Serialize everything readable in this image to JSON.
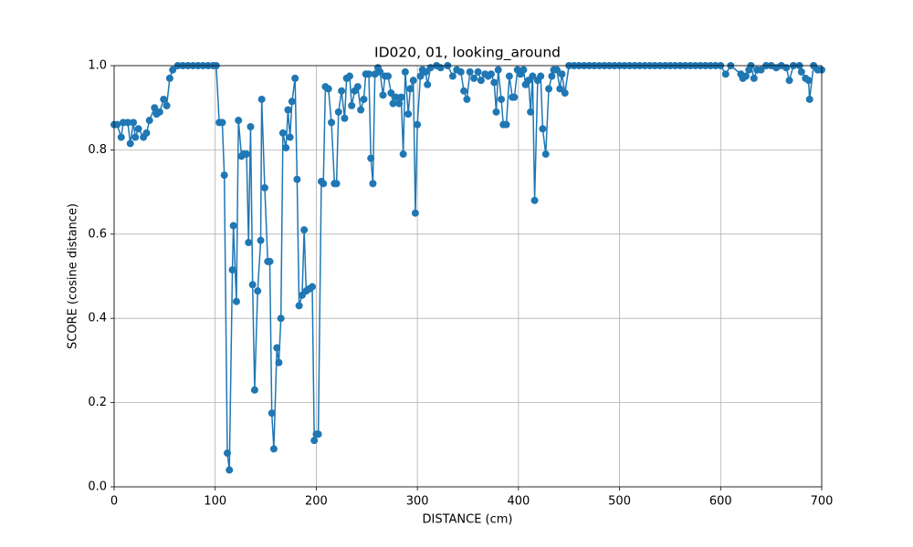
{
  "chart_data": {
    "type": "line",
    "title": "ID020, 01, looking_around",
    "xlabel": "DISTANCE (cm)",
    "ylabel": "SCORE (cosine distance)",
    "color": "#1f77b4",
    "marker": true,
    "grid": true,
    "xlim": [
      0,
      700
    ],
    "ylim": [
      0,
      1
    ],
    "xticks": [
      0,
      100,
      200,
      300,
      400,
      500,
      600,
      700
    ],
    "yticks": [
      {
        "value": 0,
        "label": "0.0"
      },
      {
        "value": 0.2,
        "label": "0.2"
      },
      {
        "value": 0.4,
        "label": "0.4"
      },
      {
        "value": 0.6,
        "label": "0.6"
      },
      {
        "value": 0.8,
        "label": "0.8"
      },
      {
        "value": 1,
        "label": "1.0"
      }
    ],
    "x": [
      0,
      3,
      7,
      9,
      13.5,
      16,
      19,
      21,
      24,
      29,
      32,
      35,
      40,
      42,
      45,
      49,
      52,
      55,
      58,
      63,
      68,
      73,
      78,
      83,
      88,
      93,
      98,
      101,
      104,
      107,
      109,
      112,
      114,
      117,
      118,
      121,
      123,
      126,
      128,
      131,
      133,
      135,
      137,
      139,
      142,
      145,
      146,
      149,
      152,
      154,
      156,
      158,
      161,
      163,
      165,
      167,
      170,
      172,
      174,
      176,
      179,
      181,
      183,
      186,
      188,
      190,
      193,
      196,
      198,
      200,
      202,
      205,
      207,
      209,
      212,
      215,
      218,
      220,
      222,
      225,
      228,
      230,
      233,
      235,
      238,
      241,
      244,
      247,
      249,
      252,
      254,
      256,
      258,
      261,
      263,
      266,
      268,
      271,
      274,
      276,
      279,
      282,
      284,
      286,
      288,
      291,
      293,
      296,
      298,
      300,
      303,
      305,
      308,
      310,
      313,
      319,
      323,
      330,
      335,
      339,
      343,
      346,
      349,
      352,
      356,
      360,
      363,
      367,
      370,
      373,
      376,
      378,
      380,
      383,
      385,
      388,
      391,
      394,
      396,
      399,
      402,
      405,
      407,
      410,
      412,
      414,
      416,
      419,
      422,
      424,
      427,
      430,
      433,
      435,
      438,
      441,
      443,
      446,
      450,
      455,
      460,
      465,
      470,
      475,
      480,
      485,
      490,
      495,
      500,
      505,
      510,
      515,
      520,
      525,
      530,
      535,
      540,
      545,
      550,
      555,
      560,
      565,
      570,
      575,
      580,
      585,
      590,
      595,
      600,
      605,
      610,
      620,
      622,
      625,
      628,
      630,
      633,
      636,
      640,
      645,
      650,
      655,
      660,
      665,
      668,
      672,
      678,
      680,
      684,
      687,
      688,
      692,
      696,
      700
    ],
    "values": [
      0.86,
      0.86,
      0.83,
      0.865,
      0.865,
      0.815,
      0.865,
      0.83,
      0.85,
      0.83,
      0.84,
      0.87,
      0.9,
      0.885,
      0.89,
      0.92,
      0.905,
      0.97,
      0.99,
      1,
      1,
      1,
      1,
      1,
      1,
      1,
      1,
      1,
      0.865,
      0.865,
      0.74,
      0.08,
      0.04,
      0.515,
      0.62,
      0.44,
      0.87,
      0.785,
      0.79,
      0.79,
      0.58,
      0.855,
      0.48,
      0.23,
      0.465,
      0.585,
      0.92,
      0.71,
      0.535,
      0.535,
      0.175,
      0.09,
      0.33,
      0.295,
      0.4,
      0.84,
      0.805,
      0.895,
      0.83,
      0.915,
      0.97,
      0.73,
      0.43,
      0.455,
      0.61,
      0.465,
      0.47,
      0.475,
      0.11,
      0.125,
      0.125,
      0.725,
      0.72,
      0.95,
      0.945,
      0.865,
      0.72,
      0.72,
      0.89,
      0.94,
      0.875,
      0.97,
      0.975,
      0.905,
      0.94,
      0.95,
      0.895,
      0.92,
      0.98,
      0.98,
      0.78,
      0.72,
      0.98,
      0.995,
      0.985,
      0.93,
      0.975,
      0.975,
      0.935,
      0.91,
      0.925,
      0.91,
      0.925,
      0.79,
      0.985,
      0.885,
      0.945,
      0.965,
      0.65,
      0.86,
      0.975,
      0.99,
      0.985,
      0.955,
      0.995,
      1,
      0.995,
      1,
      0.975,
      0.99,
      0.985,
      0.94,
      0.92,
      0.985,
      0.97,
      0.985,
      0.965,
      0.98,
      0.975,
      0.98,
      0.96,
      0.89,
      0.99,
      0.92,
      0.86,
      0.86,
      0.975,
      0.925,
      0.925,
      0.99,
      0.98,
      0.99,
      0.955,
      0.965,
      0.89,
      0.975,
      0.68,
      0.965,
      0.975,
      0.85,
      0.79,
      0.945,
      0.975,
      0.99,
      0.99,
      0.945,
      0.98,
      0.935,
      1,
      1,
      1,
      1,
      1,
      1,
      1,
      1,
      1,
      1,
      1,
      1,
      1,
      1,
      1,
      1,
      1,
      1,
      1,
      1,
      1,
      1,
      1,
      1,
      1,
      1,
      1,
      1,
      1,
      1,
      1,
      0.98,
      1,
      0.98,
      0.97,
      0.975,
      0.99,
      1,
      0.97,
      0.99,
      0.99,
      1,
      1,
      0.995,
      1,
      0.995,
      0.965,
      1,
      1,
      0.985,
      0.97,
      0.965,
      0.92,
      1,
      0.99,
      0.99
    ]
  }
}
